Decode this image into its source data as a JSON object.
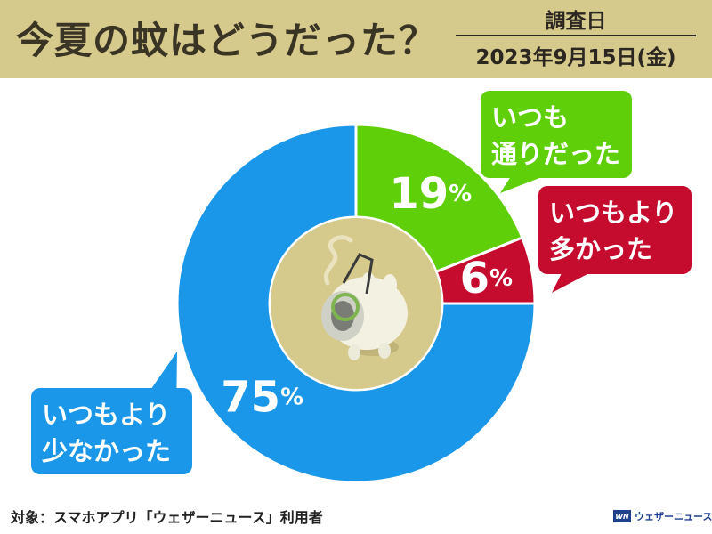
{
  "header": {
    "title": "今夏の蚊はどうだった？",
    "survey_label": "調査日",
    "survey_date": "2023年9月15日(金)"
  },
  "chart_data": {
    "type": "pie",
    "title": "今夏の蚊はどうだった？",
    "donut": true,
    "slices": [
      {
        "label": "いつも通りだった",
        "value": 19,
        "display": "19%",
        "color": "#5fcf0a"
      },
      {
        "label": "いつもより多かった",
        "value": 6,
        "display": "6%",
        "color": "#c60c2e"
      },
      {
        "label": "いつもより少なかった",
        "value": 75,
        "display": "75%",
        "color": "#1a97e8"
      }
    ],
    "center_color": "#d6c98c"
  },
  "callouts": {
    "green": [
      "いつも",
      "通りだった"
    ],
    "red": [
      "いつもより",
      "多かった"
    ],
    "blue": [
      "いつもより",
      "少なかった"
    ]
  },
  "icons": {
    "center": "mosquito-coil-pig-icon",
    "brand": "weathernews-logo-icon"
  },
  "footer": {
    "note": "対象：スマホアプリ「ウェザーニュース」利用者",
    "brand_logo": "WN",
    "brand_text": "ウェザーニュース"
  }
}
